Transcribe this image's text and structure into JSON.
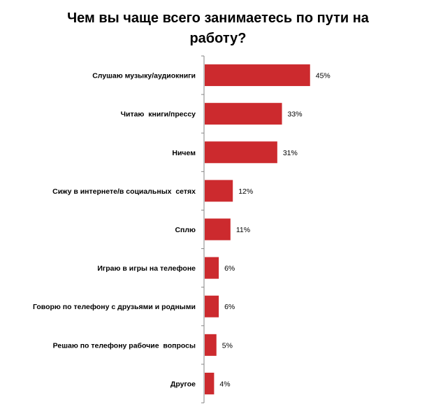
{
  "chart_data": {
    "type": "bar",
    "orientation": "horizontal",
    "title": "Чем вы чаще всего занимаетесь по пути на работу?",
    "categories": [
      "Слушаю музыку/аудиокниги",
      "Читаю  книги/прессу",
      "Ничем",
      "Сижу в интернете/в социальных  сетях",
      "Сплю",
      "Играю в игры на телефоне",
      "Говорю по телефону с друзьями и родными",
      "Решаю по телефону рабочие  вопросы",
      "Другое"
    ],
    "values": [
      45,
      33,
      31,
      12,
      11,
      6,
      6,
      5,
      4
    ],
    "value_labels": [
      "45%",
      "33%",
      "31%",
      "12%",
      "11%",
      "6%",
      "6%",
      "5%",
      "4%"
    ],
    "unit": "%",
    "xlim": [
      0,
      100
    ],
    "grid": false,
    "legend": "none",
    "bar_color": "#cc2a2e"
  }
}
